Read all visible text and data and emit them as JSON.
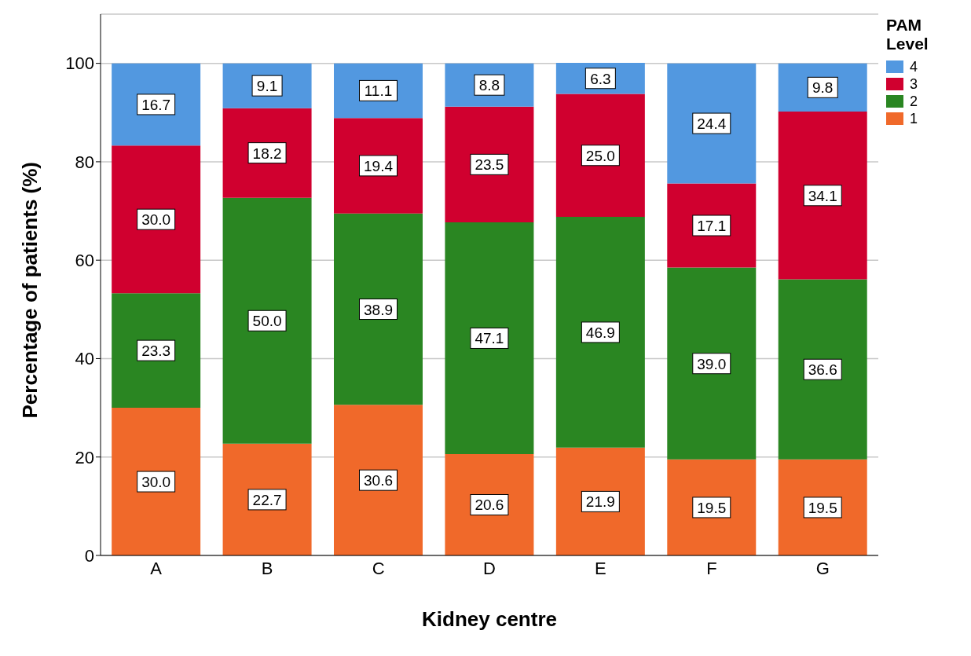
{
  "chart_data": {
    "type": "bar",
    "stacked": true,
    "xlabel": "Kidney centre",
    "ylabel": "Percentage of patients (%)",
    "legend_title": "PAM Level",
    "categories": [
      "A",
      "B",
      "C",
      "D",
      "E",
      "F",
      "G"
    ],
    "series": [
      {
        "name": "1",
        "color": "#f0692a",
        "values": [
          30.0,
          22.7,
          30.6,
          20.6,
          21.9,
          19.5,
          19.5
        ],
        "value_labels": [
          "30.0",
          "22.7",
          "30.6",
          "20.6",
          "21.9",
          "19.5",
          "19.5"
        ]
      },
      {
        "name": "2",
        "color": "#2a8622",
        "values": [
          23.3,
          50.0,
          38.9,
          47.1,
          46.9,
          39.0,
          36.6
        ],
        "value_labels": [
          "23.3",
          "50.0",
          "38.9",
          "47.1",
          "46.9",
          "39.0",
          "36.6"
        ]
      },
      {
        "name": "3",
        "color": "#d0002f",
        "values": [
          30.0,
          18.2,
          19.4,
          23.5,
          25.0,
          17.1,
          34.1
        ],
        "value_labels": [
          "30.0",
          "18.2",
          "19.4",
          "23.5",
          "25.0",
          "17.1",
          "34.1"
        ]
      },
      {
        "name": "4",
        "color": "#5298e0",
        "values": [
          16.7,
          9.1,
          11.1,
          8.8,
          6.3,
          24.4,
          9.8
        ],
        "value_labels": [
          "16.7",
          "9.1",
          "11.1",
          "8.8",
          "6.3",
          "24.4",
          "9.8"
        ]
      }
    ],
    "ylim": [
      0,
      110
    ],
    "yticks": [
      0,
      20,
      40,
      60,
      80,
      100
    ],
    "grid": "y",
    "legend": "top right"
  }
}
